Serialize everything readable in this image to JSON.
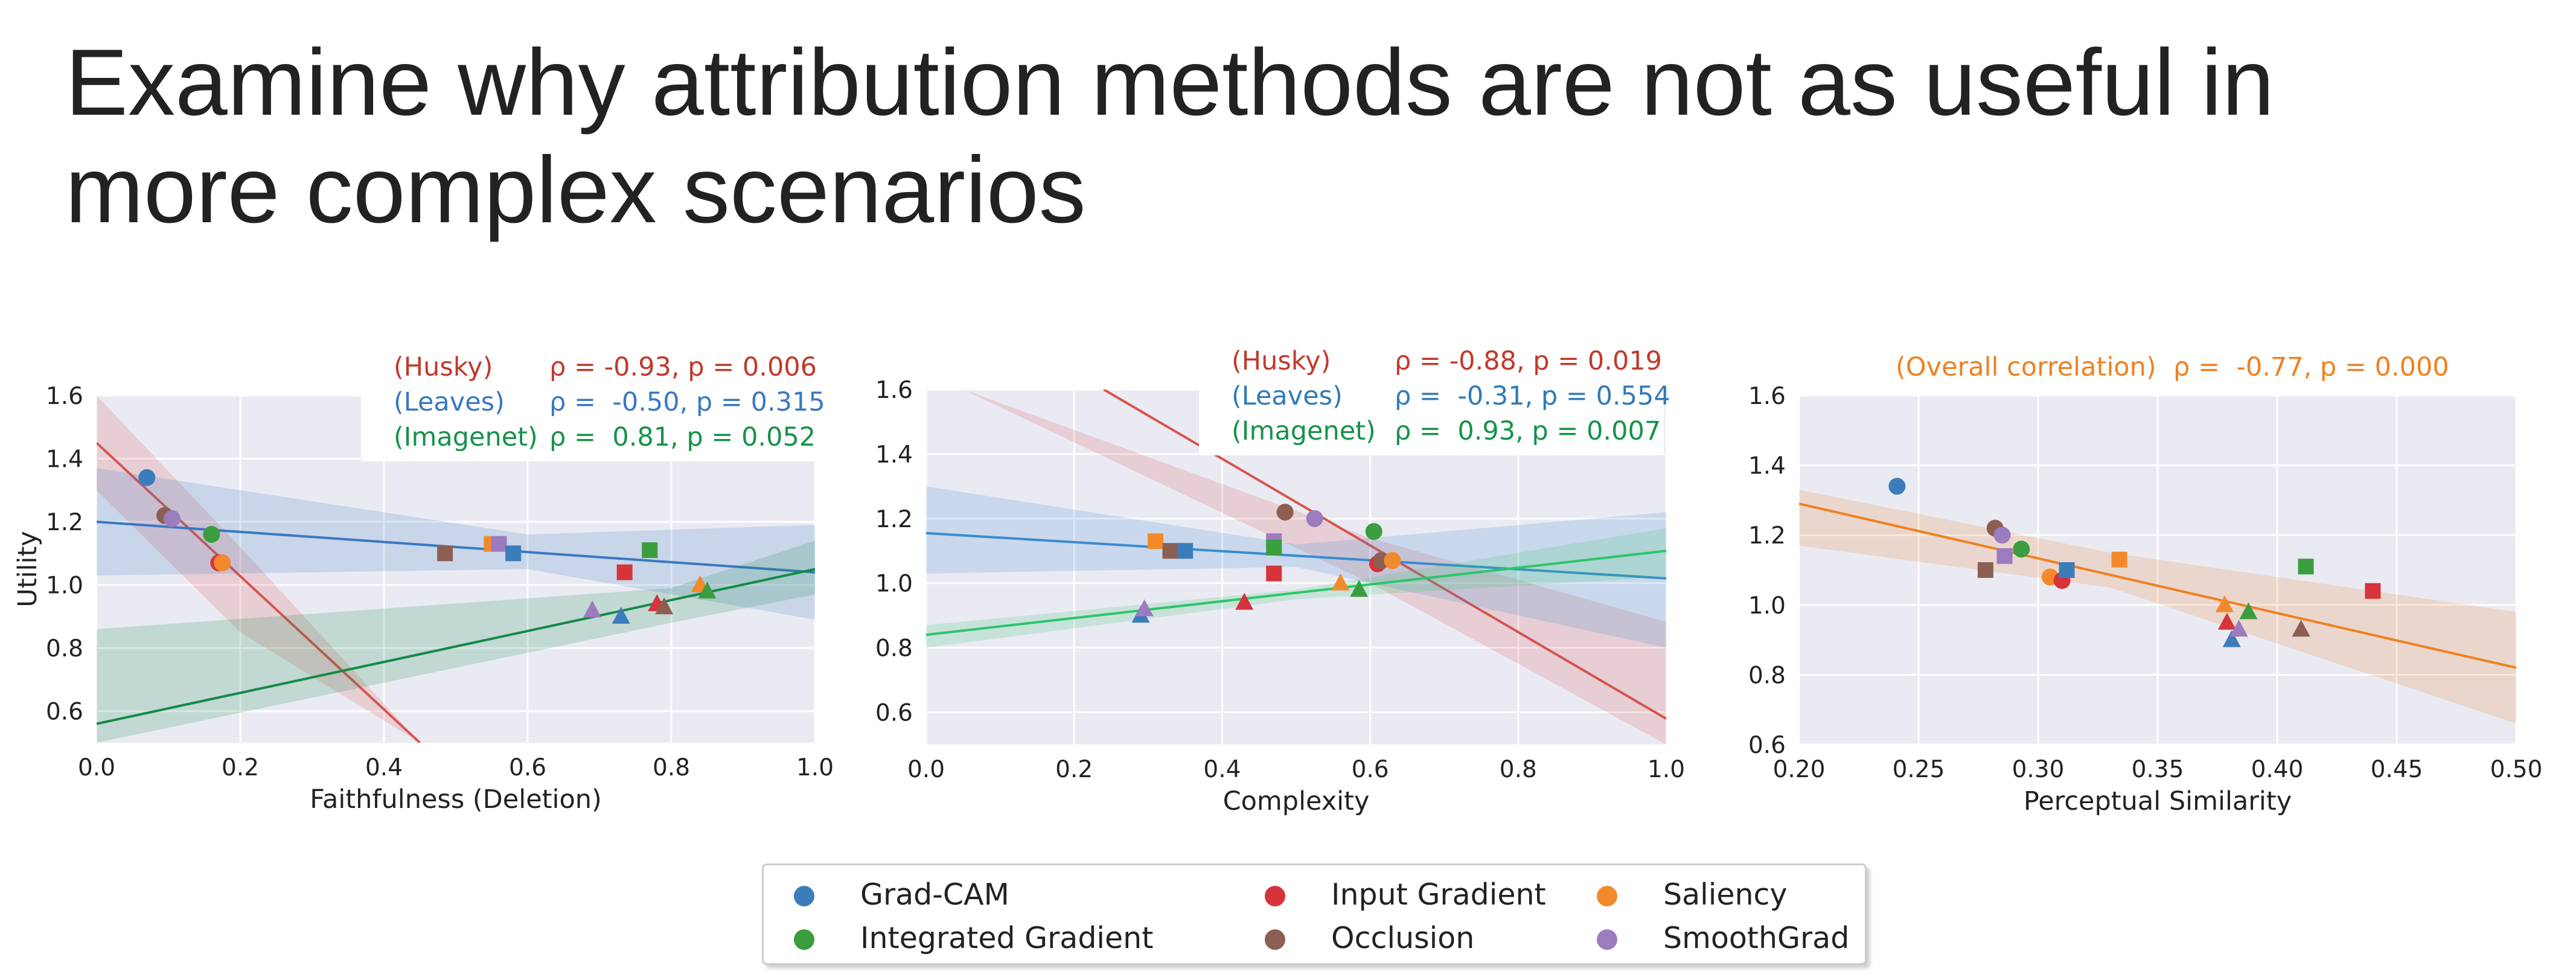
{
  "title": "Examine why attribution methods are not as useful in more complex scenarios",
  "colors": {
    "Grad-CAM": "#3b7dba",
    "Integrated Gradient": "#3a9e3f",
    "Input Gradient": "#d6343a",
    "Occlusion": "#8c5f52",
    "Saliency": "#f28a2c",
    "SmoothGrad": "#9c7bbf"
  },
  "legend": {
    "items": [
      {
        "label": "Grad-CAM",
        "color": "#3b7dba"
      },
      {
        "label": "Input Gradient",
        "color": "#d6343a"
      },
      {
        "label": "Saliency",
        "color": "#f28a2c"
      },
      {
        "label": "Integrated Gradient",
        "color": "#3a9e3f"
      },
      {
        "label": "Occlusion",
        "color": "#8c5f52"
      },
      {
        "label": "SmoothGrad",
        "color": "#9c7bbf"
      }
    ]
  },
  "chart_data": [
    {
      "type": "scatter",
      "xlabel": "Faithfulness (Deletion)",
      "ylabel": "Utility",
      "xlim": [
        0.0,
        1.0
      ],
      "ylim": [
        0.5,
        1.6
      ],
      "xticks": [
        "0.0",
        "0.2",
        "0.4",
        "0.6",
        "0.8",
        "1.0"
      ],
      "yticks": [
        "0.6",
        "0.8",
        "1.0",
        "1.2",
        "1.4",
        "1.6"
      ],
      "grid": true,
      "annotation_lines": [
        {
          "label": "(Husky)",
          "stat": "ρ = -0.93, p = 0.006",
          "color": "#c0392b"
        },
        {
          "label": "(Leaves)",
          "stat": "ρ =  -0.50, p = 0.315",
          "color": "#3a78c2"
        },
        {
          "label": "(Imagenet)",
          "stat": "ρ =  0.81, p = 0.052",
          "color": "#16924a"
        }
      ],
      "fits": [
        {
          "group": "Husky",
          "color": "#d9534f",
          "x": [
            0.0,
            0.45
          ],
          "y": [
            1.45,
            0.5
          ],
          "band": [
            [
              0.0,
              1.6,
              1.3
            ],
            [
              0.2,
              1.12,
              0.85
            ],
            [
              0.45,
              0.5,
              0.5
            ]
          ]
        },
        {
          "group": "Leaves",
          "color": "#3a78c2",
          "x": [
            0.0,
            1.0
          ],
          "y": [
            1.2,
            1.04
          ],
          "band": [
            [
              0.0,
              1.37,
              1.03
            ],
            [
              0.6,
              1.16,
              1.05
            ],
            [
              1.0,
              1.19,
              0.89
            ]
          ]
        },
        {
          "group": "Imagenet",
          "color": "#138a48",
          "x": [
            0.0,
            1.0
          ],
          "y": [
            0.56,
            1.05
          ],
          "band": [
            [
              0.0,
              0.86,
              0.5
            ],
            [
              0.8,
              0.99,
              0.88
            ],
            [
              1.0,
              1.14,
              0.97
            ]
          ]
        }
      ],
      "points": [
        {
          "method": "Grad-CAM",
          "group": "Husky",
          "x": 0.07,
          "y": 1.34
        },
        {
          "method": "Occlusion",
          "group": "Husky",
          "x": 0.095,
          "y": 1.22
        },
        {
          "method": "SmoothGrad",
          "group": "Husky",
          "x": 0.105,
          "y": 1.21
        },
        {
          "method": "Integrated Gradient",
          "group": "Husky",
          "x": 0.16,
          "y": 1.16
        },
        {
          "method": "Input Gradient",
          "group": "Husky",
          "x": 0.17,
          "y": 1.07
        },
        {
          "method": "Saliency",
          "group": "Husky",
          "x": 0.175,
          "y": 1.07
        },
        {
          "method": "Occlusion",
          "group": "Leaves",
          "x": 0.485,
          "y": 1.1
        },
        {
          "method": "Saliency",
          "group": "Leaves",
          "x": 0.55,
          "y": 1.13
        },
        {
          "method": "SmoothGrad",
          "group": "Leaves",
          "x": 0.56,
          "y": 1.13
        },
        {
          "method": "Grad-CAM",
          "group": "Leaves",
          "x": 0.58,
          "y": 1.1
        },
        {
          "method": "Input Gradient",
          "group": "Leaves",
          "x": 0.735,
          "y": 1.04
        },
        {
          "method": "Integrated Gradient",
          "group": "Leaves",
          "x": 0.77,
          "y": 1.11
        },
        {
          "method": "SmoothGrad",
          "group": "Imagenet",
          "x": 0.69,
          "y": 0.92
        },
        {
          "method": "Grad-CAM",
          "group": "Imagenet",
          "x": 0.73,
          "y": 0.9
        },
        {
          "method": "Input Gradient",
          "group": "Imagenet",
          "x": 0.78,
          "y": 0.94
        },
        {
          "method": "Occlusion",
          "group": "Imagenet",
          "x": 0.79,
          "y": 0.93
        },
        {
          "method": "Saliency",
          "group": "Imagenet",
          "x": 0.84,
          "y": 1.0
        },
        {
          "method": "Integrated Gradient",
          "group": "Imagenet",
          "x": 0.85,
          "y": 0.98
        }
      ]
    },
    {
      "type": "scatter",
      "xlabel": "Complexity",
      "ylabel": "",
      "xlim": [
        0.0,
        1.0
      ],
      "ylim": [
        0.5,
        1.6
      ],
      "xticks": [
        "0.0",
        "0.2",
        "0.4",
        "0.6",
        "0.8",
        "1.0"
      ],
      "yticks": [
        "0.6",
        "0.8",
        "1.0",
        "1.2",
        "1.4",
        "1.6"
      ],
      "grid": true,
      "annotation_lines": [
        {
          "label": "(Husky)",
          "stat": "ρ = -0.88, p = 0.019",
          "color": "#c0392b"
        },
        {
          "label": "(Leaves)",
          "stat": "ρ =  -0.31, p = 0.554",
          "color": "#2f7bb6"
        },
        {
          "label": "(Imagenet)",
          "stat": "ρ =  0.93, p = 0.007",
          "color": "#16924a"
        }
      ],
      "fits": [
        {
          "group": "Husky",
          "color": "#d9534f",
          "x": [
            0.24,
            1.0
          ],
          "y": [
            1.6,
            0.58
          ],
          "band": [
            [
              0.05,
              1.6,
              1.6
            ],
            [
              0.6,
              1.14,
              1.0
            ],
            [
              1.0,
              0.88,
              0.5
            ]
          ]
        },
        {
          "group": "Leaves",
          "color": "#3a8bd0",
          "x": [
            0.0,
            1.0
          ],
          "y": [
            1.155,
            1.015
          ],
          "band": [
            [
              0.0,
              1.3,
              1.03
            ],
            [
              0.5,
              1.12,
              1.05
            ],
            [
              1.0,
              1.22,
              0.8
            ]
          ]
        },
        {
          "group": "Imagenet",
          "color": "#2ec56a",
          "x": [
            0.0,
            1.0
          ],
          "y": [
            0.84,
            1.1
          ],
          "band": [
            [
              0.0,
              0.87,
              0.8
            ],
            [
              0.5,
              0.98,
              0.95
            ],
            [
              1.0,
              1.17,
              1.02
            ]
          ]
        }
      ],
      "points": [
        {
          "method": "Saliency",
          "group": "Leaves",
          "x": 0.31,
          "y": 1.13
        },
        {
          "method": "Occlusion",
          "group": "Leaves",
          "x": 0.33,
          "y": 1.1
        },
        {
          "method": "Grad-CAM",
          "group": "Leaves",
          "x": 0.35,
          "y": 1.1
        },
        {
          "method": "Input Gradient",
          "group": "Leaves",
          "x": 0.47,
          "y": 1.03
        },
        {
          "method": "SmoothGrad",
          "group": "Leaves",
          "x": 0.47,
          "y": 1.13
        },
        {
          "method": "Integrated Gradient",
          "group": "Leaves",
          "x": 0.47,
          "y": 1.11
        },
        {
          "method": "Occlusion",
          "group": "Husky",
          "x": 0.485,
          "y": 1.22
        },
        {
          "method": "SmoothGrad",
          "group": "Husky",
          "x": 0.525,
          "y": 1.2
        },
        {
          "method": "Integrated Gradient",
          "group": "Husky",
          "x": 0.605,
          "y": 1.16
        },
        {
          "method": "Input Gradient",
          "group": "Husky",
          "x": 0.61,
          "y": 1.06
        },
        {
          "method": "Occlusion",
          "group": "Husky",
          "x": 0.615,
          "y": 1.07
        },
        {
          "method": "Saliency",
          "group": "Husky",
          "x": 0.63,
          "y": 1.07
        },
        {
          "method": "Grad-CAM",
          "group": "Imagenet",
          "x": 0.29,
          "y": 0.9
        },
        {
          "method": "SmoothGrad",
          "group": "Imagenet",
          "x": 0.295,
          "y": 0.92
        },
        {
          "method": "Input Gradient",
          "group": "Imagenet",
          "x": 0.43,
          "y": 0.94
        },
        {
          "method": "Saliency",
          "group": "Imagenet",
          "x": 0.56,
          "y": 1.0
        },
        {
          "method": "Integrated Gradient",
          "group": "Imagenet",
          "x": 0.585,
          "y": 0.98
        }
      ]
    },
    {
      "type": "scatter",
      "xlabel": "Perceptual Similarity",
      "ylabel": "",
      "xlim": [
        0.2,
        0.5
      ],
      "ylim": [
        0.6,
        1.6
      ],
      "xticks": [
        "0.20",
        "0.25",
        "0.30",
        "0.35",
        "0.40",
        "0.45",
        "0.50"
      ],
      "yticks": [
        "0.6",
        "0.8",
        "1.0",
        "1.2",
        "1.4",
        "1.6"
      ],
      "grid": true,
      "annotation_lines": [
        {
          "label": "(Overall correlation)",
          "stat": "ρ =  -0.77, p = 0.000",
          "color": "#f08020"
        }
      ],
      "fits": [
        {
          "group": "Overall",
          "color": "#f08020",
          "x": [
            0.2,
            0.5
          ],
          "y": [
            1.29,
            0.82
          ],
          "band": [
            [
              0.2,
              1.33,
              1.17
            ],
            [
              0.33,
              1.15,
              1.05
            ],
            [
              0.5,
              0.98,
              0.66
            ]
          ]
        }
      ],
      "points": [
        {
          "method": "Grad-CAM",
          "group": "Husky",
          "x": 0.241,
          "y": 1.34
        },
        {
          "method": "Occlusion",
          "group": "Husky",
          "x": 0.282,
          "y": 1.22
        },
        {
          "method": "SmoothGrad",
          "group": "Husky",
          "x": 0.285,
          "y": 1.2
        },
        {
          "method": "Integrated Gradient",
          "group": "Husky",
          "x": 0.293,
          "y": 1.16
        },
        {
          "method": "Saliency",
          "group": "Husky",
          "x": 0.305,
          "y": 1.08
        },
        {
          "method": "Input Gradient",
          "group": "Husky",
          "x": 0.31,
          "y": 1.07
        },
        {
          "method": "Occlusion",
          "group": "Leaves",
          "x": 0.278,
          "y": 1.1
        },
        {
          "method": "SmoothGrad",
          "group": "Leaves",
          "x": 0.286,
          "y": 1.14
        },
        {
          "method": "Grad-CAM",
          "group": "Leaves",
          "x": 0.312,
          "y": 1.1
        },
        {
          "method": "Saliency",
          "group": "Leaves",
          "x": 0.334,
          "y": 1.13
        },
        {
          "method": "Integrated Gradient",
          "group": "Leaves",
          "x": 0.412,
          "y": 1.11
        },
        {
          "method": "Input Gradient",
          "group": "Leaves",
          "x": 0.44,
          "y": 1.04
        },
        {
          "method": "Saliency",
          "group": "Imagenet",
          "x": 0.378,
          "y": 1.0
        },
        {
          "method": "Input Gradient",
          "group": "Imagenet",
          "x": 0.379,
          "y": 0.95
        },
        {
          "method": "Grad-CAM",
          "group": "Imagenet",
          "x": 0.381,
          "y": 0.9
        },
        {
          "method": "SmoothGrad",
          "group": "Imagenet",
          "x": 0.384,
          "y": 0.93
        },
        {
          "method": "Integrated Gradient",
          "group": "Imagenet",
          "x": 0.388,
          "y": 0.98
        },
        {
          "method": "Occlusion",
          "group": "Imagenet",
          "x": 0.41,
          "y": 0.93
        }
      ]
    }
  ]
}
